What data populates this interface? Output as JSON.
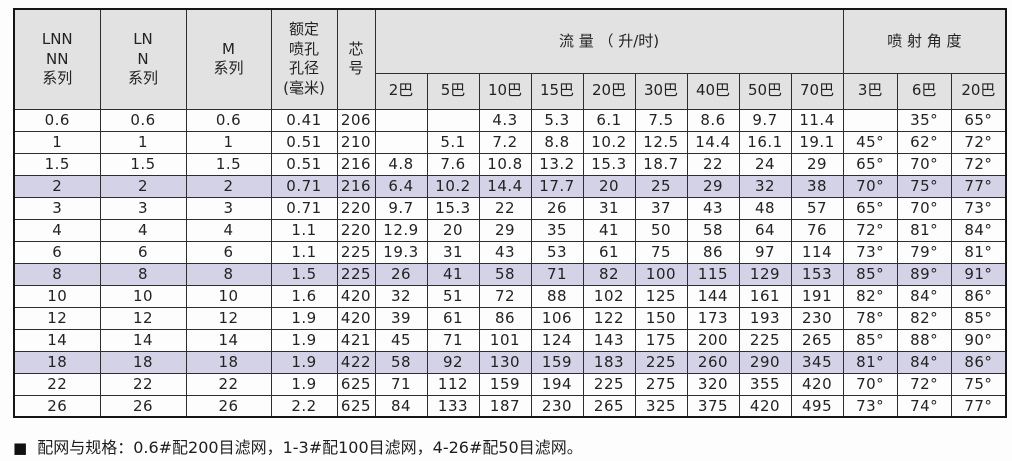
{
  "colors": {
    "header_bg": "#e2e2e2",
    "highlight_row_bg": "#d4d2e6",
    "border": "#2e2e2e",
    "text": "#232323",
    "page_bg": "#fdfdfd"
  },
  "header": {
    "series_lnn": "LNN\nNN\n系列",
    "series_ln": "LN\nN\n系列",
    "series_m": "M\n系列",
    "orifice": "额定\n喷孔\n孔径\n(毫米)",
    "core": "芯\n号",
    "flow_group": "流 量 （ 升/时)",
    "flow_cols": [
      "2巴",
      "5巴",
      "10巴",
      "15巴",
      "20巴",
      "30巴",
      "40巴",
      "50巴",
      "70巴"
    ],
    "angle_group": "喷 射 角 度",
    "angle_cols": [
      "3巴",
      "6巴",
      "20巴"
    ]
  },
  "rows": [
    {
      "lnn": "0.6",
      "ln": "0.6",
      "m": "0.6",
      "orifice": "0.41",
      "core": "206",
      "flow": [
        "",
        "",
        "4.3",
        "5.3",
        "6.1",
        "7.5",
        "8.6",
        "9.7",
        "11.4"
      ],
      "angles": [
        "",
        "35°",
        "65°"
      ],
      "highlight": false
    },
    {
      "lnn": "1",
      "ln": "1",
      "m": "1",
      "orifice": "0.51",
      "core": "210",
      "flow": [
        "",
        "5.1",
        "7.2",
        "8.8",
        "10.2",
        "12.5",
        "14.4",
        "16.1",
        "19.1"
      ],
      "angles": [
        "45°",
        "62°",
        "72°"
      ],
      "highlight": false
    },
    {
      "lnn": "1.5",
      "ln": "1.5",
      "m": "1.5",
      "orifice": "0.51",
      "core": "216",
      "flow": [
        "4.8",
        "7.6",
        "10.8",
        "13.2",
        "15.3",
        "18.7",
        "22",
        "24",
        "29"
      ],
      "angles": [
        "65°",
        "70°",
        "72°"
      ],
      "highlight": false
    },
    {
      "lnn": "2",
      "ln": "2",
      "m": "2",
      "orifice": "0.71",
      "core": "216",
      "flow": [
        "6.4",
        "10.2",
        "14.4",
        "17.7",
        "20",
        "25",
        "29",
        "32",
        "38"
      ],
      "angles": [
        "70°",
        "75°",
        "77°"
      ],
      "highlight": true
    },
    {
      "lnn": "3",
      "ln": "3",
      "m": "3",
      "orifice": "0.71",
      "core": "220",
      "flow": [
        "9.7",
        "15.3",
        "22",
        "26",
        "31",
        "37",
        "43",
        "48",
        "57"
      ],
      "angles": [
        "65°",
        "70°",
        "73°"
      ],
      "highlight": false
    },
    {
      "lnn": "4",
      "ln": "4",
      "m": "4",
      "orifice": "1.1",
      "core": "220",
      "flow": [
        "12.9",
        "20",
        "29",
        "35",
        "41",
        "50",
        "58",
        "64",
        "76"
      ],
      "angles": [
        "72°",
        "81°",
        "84°"
      ],
      "highlight": false
    },
    {
      "lnn": "6",
      "ln": "6",
      "m": "6",
      "orifice": "1.1",
      "core": "225",
      "flow": [
        "19.3",
        "31",
        "43",
        "53",
        "61",
        "75",
        "86",
        "97",
        "114"
      ],
      "angles": [
        "73°",
        "79°",
        "81°"
      ],
      "highlight": false
    },
    {
      "lnn": "8",
      "ln": "8",
      "m": "8",
      "orifice": "1.5",
      "core": "225",
      "flow": [
        "26",
        "41",
        "58",
        "71",
        "82",
        "100",
        "115",
        "129",
        "153"
      ],
      "angles": [
        "85°",
        "89°",
        "91°"
      ],
      "highlight": true
    },
    {
      "lnn": "10",
      "ln": "10",
      "m": "10",
      "orifice": "1.6",
      "core": "420",
      "flow": [
        "32",
        "51",
        "72",
        "88",
        "102",
        "125",
        "144",
        "161",
        "191"
      ],
      "angles": [
        "82°",
        "84°",
        "86°"
      ],
      "highlight": false
    },
    {
      "lnn": "12",
      "ln": "12",
      "m": "12",
      "orifice": "1.9",
      "core": "420",
      "flow": [
        "39",
        "61",
        "86",
        "106",
        "122",
        "150",
        "173",
        "193",
        "230"
      ],
      "angles": [
        "78°",
        "82°",
        "85°"
      ],
      "highlight": false
    },
    {
      "lnn": "14",
      "ln": "14",
      "m": "14",
      "orifice": "1.9",
      "core": "421",
      "flow": [
        "45",
        "71",
        "101",
        "124",
        "143",
        "175",
        "200",
        "225",
        "265"
      ],
      "angles": [
        "85°",
        "88°",
        "90°"
      ],
      "highlight": false
    },
    {
      "lnn": "18",
      "ln": "18",
      "m": "18",
      "orifice": "1.9",
      "core": "422",
      "flow": [
        "58",
        "92",
        "130",
        "159",
        "183",
        "225",
        "260",
        "290",
        "345"
      ],
      "angles": [
        "81°",
        "84°",
        "86°"
      ],
      "highlight": true
    },
    {
      "lnn": "22",
      "ln": "22",
      "m": "22",
      "orifice": "1.9",
      "core": "625",
      "flow": [
        "71",
        "112",
        "159",
        "194",
        "225",
        "275",
        "320",
        "355",
        "420"
      ],
      "angles": [
        "70°",
        "72°",
        "75°"
      ],
      "highlight": false
    },
    {
      "lnn": "26",
      "ln": "26",
      "m": "26",
      "orifice": "2.2",
      "core": "625",
      "flow": [
        "84",
        "133",
        "187",
        "230",
        "265",
        "325",
        "375",
        "420",
        "495"
      ],
      "angles": [
        "73°",
        "74°",
        "77°"
      ],
      "highlight": false
    }
  ],
  "footnote": {
    "bullet": "■",
    "text": "配网与规格：0.6#配200目滤网，1-3#配100目滤网，4-26#配50目滤网。"
  }
}
